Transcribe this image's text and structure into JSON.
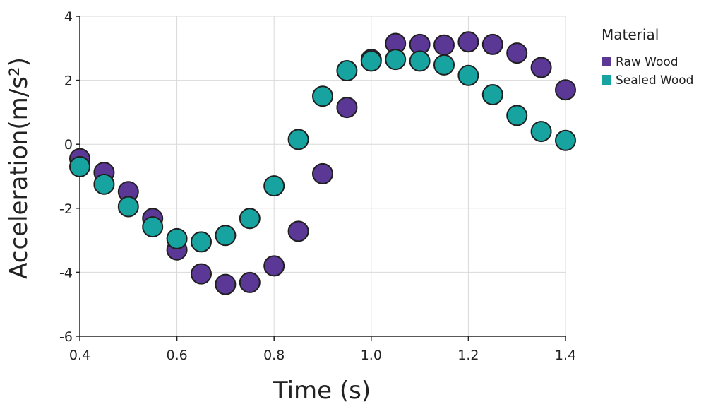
{
  "chart_data": {
    "type": "scatter",
    "xlabel": "Time (s)",
    "ylabel": "Acceleration(m/s²)",
    "xlim": [
      0.4,
      1.4
    ],
    "ylim": [
      -6,
      4
    ],
    "x_ticks": [
      "0.4",
      "0.6",
      "0.8",
      "1.0",
      "1.2",
      "1.4"
    ],
    "y_ticks": [
      "4",
      "2",
      "0",
      "-2",
      "-4",
      "-6"
    ],
    "grid": true,
    "legend": {
      "title": "Material",
      "position": "right"
    },
    "series": [
      {
        "name": "Raw Wood",
        "color": "#5b3796",
        "points": [
          [
            0.4,
            -0.45
          ],
          [
            0.45,
            -0.88
          ],
          [
            0.5,
            -1.48
          ],
          [
            0.55,
            -2.32
          ],
          [
            0.6,
            -3.3
          ],
          [
            0.65,
            -4.05
          ],
          [
            0.7,
            -4.38
          ],
          [
            0.75,
            -4.32
          ],
          [
            0.8,
            -3.8
          ],
          [
            0.85,
            -2.72
          ],
          [
            0.9,
            -0.92
          ],
          [
            0.95,
            1.15
          ],
          [
            1.0,
            2.65
          ],
          [
            1.05,
            3.15
          ],
          [
            1.1,
            3.12
          ],
          [
            1.15,
            3.1
          ],
          [
            1.2,
            3.2
          ],
          [
            1.25,
            3.12
          ],
          [
            1.3,
            2.85
          ],
          [
            1.35,
            2.4
          ],
          [
            1.4,
            1.7
          ]
        ]
      },
      {
        "name": "Sealed Wood",
        "color": "#17a3a0",
        "points": [
          [
            0.4,
            -0.7
          ],
          [
            0.45,
            -1.25
          ],
          [
            0.5,
            -1.95
          ],
          [
            0.55,
            -2.58
          ],
          [
            0.6,
            -2.95
          ],
          [
            0.65,
            -3.05
          ],
          [
            0.7,
            -2.85
          ],
          [
            0.75,
            -2.32
          ],
          [
            0.8,
            -1.3
          ],
          [
            0.85,
            0.15
          ],
          [
            0.9,
            1.5
          ],
          [
            0.95,
            2.3
          ],
          [
            1.0,
            2.6
          ],
          [
            1.05,
            2.65
          ],
          [
            1.1,
            2.6
          ],
          [
            1.15,
            2.48
          ],
          [
            1.2,
            2.15
          ],
          [
            1.25,
            1.55
          ],
          [
            1.3,
            0.9
          ],
          [
            1.35,
            0.4
          ],
          [
            1.4,
            0.12
          ]
        ]
      }
    ]
  }
}
